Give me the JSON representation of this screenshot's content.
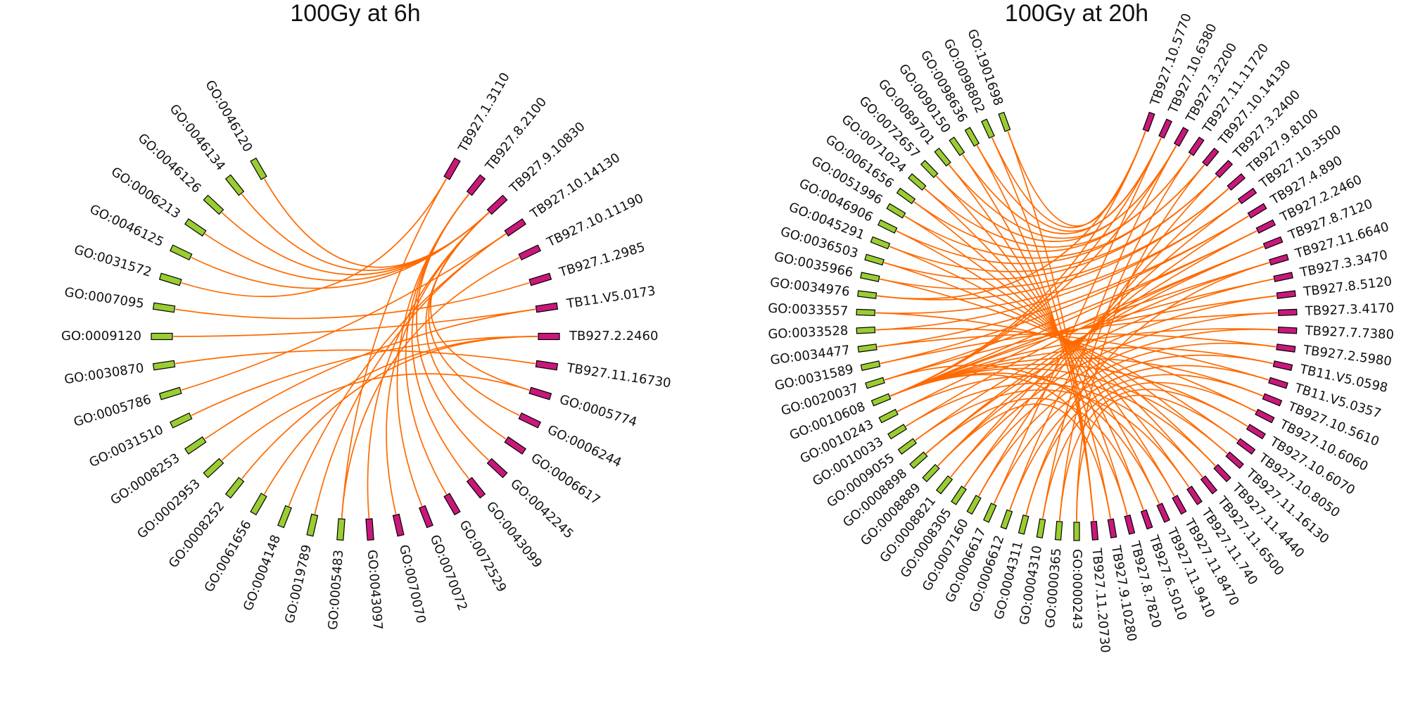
{
  "chart_data": [
    {
      "type": "chord",
      "title": "100Gy at 6h",
      "nodes": [
        {
          "label": "TB927.1.3110",
          "group": "gene"
        },
        {
          "label": "TB927.8.2100",
          "group": "gene"
        },
        {
          "label": "TB927.9.10830",
          "group": "gene"
        },
        {
          "label": "TB927.10.14130",
          "group": "gene"
        },
        {
          "label": "TB927.10.11190",
          "group": "gene"
        },
        {
          "label": "TB927.1.2985",
          "group": "gene"
        },
        {
          "label": "TB11.V5.0173",
          "group": "gene"
        },
        {
          "label": "TB927.2.2460",
          "group": "gene"
        },
        {
          "label": "TB927.11.16730",
          "group": "gene"
        },
        {
          "label": "GO:0005774",
          "group": "gene"
        },
        {
          "label": "GO:0006244",
          "group": "gene"
        },
        {
          "label": "GO:0006617",
          "group": "gene"
        },
        {
          "label": "GO:0042245",
          "group": "gene"
        },
        {
          "label": "GO:0043099",
          "group": "gene"
        },
        {
          "label": "GO:0072529",
          "group": "gene"
        },
        {
          "label": "GO:0070072",
          "group": "gene"
        },
        {
          "label": "GO:0070070",
          "group": "gene"
        },
        {
          "label": "GO:0043097",
          "group": "gene"
        },
        {
          "label": "GO:0005483",
          "group": "go"
        },
        {
          "label": "GO:0019789",
          "group": "go"
        },
        {
          "label": "GO:0004148",
          "group": "go"
        },
        {
          "label": "GO:0061656",
          "group": "go"
        },
        {
          "label": "GO:0008252",
          "group": "go"
        },
        {
          "label": "GO:0002953",
          "group": "go"
        },
        {
          "label": "GO:0008253",
          "group": "go"
        },
        {
          "label": "GO:0031510",
          "group": "go"
        },
        {
          "label": "GO:0005786",
          "group": "go"
        },
        {
          "label": "GO:0030870",
          "group": "go"
        },
        {
          "label": "GO:0009120",
          "group": "go"
        },
        {
          "label": "GO:0007095",
          "group": "go"
        },
        {
          "label": "GO:0031572",
          "group": "go"
        },
        {
          "label": "GO:0046125",
          "group": "go"
        },
        {
          "label": "GO:0006213",
          "group": "go"
        },
        {
          "label": "GO:0046126",
          "group": "go"
        },
        {
          "label": "GO:0046134",
          "group": "go"
        },
        {
          "label": "GO:0046120",
          "group": "go"
        }
      ],
      "links": [
        [
          "TB927.9.10830",
          "GO:0046120"
        ],
        [
          "TB927.9.10830",
          "GO:0046134"
        ],
        [
          "TB927.9.10830",
          "GO:0046126"
        ],
        [
          "TB927.9.10830",
          "GO:0006213"
        ],
        [
          "TB927.9.10830",
          "GO:0046125"
        ],
        [
          "TB927.9.10830",
          "GO:0005774"
        ],
        [
          "TB927.9.10830",
          "GO:0006244"
        ],
        [
          "TB927.9.10830",
          "GO:0006617"
        ],
        [
          "TB927.9.10830",
          "GO:0070070"
        ],
        [
          "TB927.9.10830",
          "GO:0043097"
        ],
        [
          "TB927.8.2100",
          "GO:0072529"
        ],
        [
          "TB927.8.2100",
          "GO:0070072"
        ],
        [
          "TB927.8.2100",
          "GO:0042245"
        ],
        [
          "TB927.8.2100",
          "GO:0043099"
        ],
        [
          "TB927.1.3110",
          "GO:0005483"
        ],
        [
          "TB927.1.3110",
          "GO:0031572"
        ],
        [
          "TB927.10.14130",
          "GO:0019789"
        ],
        [
          "TB927.10.14130",
          "GO:0004148"
        ],
        [
          "TB927.10.11190",
          "GO:0005483"
        ],
        [
          "TB927.1.2985",
          "GO:0007095"
        ],
        [
          "TB11.V5.0173",
          "GO:0009120"
        ],
        [
          "TB11.V5.0173",
          "GO:0008253"
        ],
        [
          "TB927.2.2460",
          "GO:0061656"
        ],
        [
          "TB927.2.2460",
          "GO:0008252"
        ],
        [
          "TB927.2.2460",
          "GO:0031510"
        ],
        [
          "TB927.11.16730",
          "GO:0030870"
        ],
        [
          "GO:0005774",
          "GO:0002953"
        ],
        [
          "TB927.10.14130",
          "GO:0005786"
        ]
      ]
    },
    {
      "type": "chord",
      "title": "100Gy at 20h",
      "nodes": [
        {
          "label": "TB927.10.5770",
          "group": "gene"
        },
        {
          "label": "TB927.10.6380",
          "group": "gene"
        },
        {
          "label": "TB927.3.2200",
          "group": "gene"
        },
        {
          "label": "TB927.11.11720",
          "group": "gene"
        },
        {
          "label": "TB927.10.14130",
          "group": "gene"
        },
        {
          "label": "TB927.3.2400",
          "group": "gene"
        },
        {
          "label": "TB927.9.8100",
          "group": "gene"
        },
        {
          "label": "TB927.10.3500",
          "group": "gene"
        },
        {
          "label": "TB927.4.890",
          "group": "gene"
        },
        {
          "label": "TB927.2.2460",
          "group": "gene"
        },
        {
          "label": "TB927.8.7120",
          "group": "gene"
        },
        {
          "label": "TB927.11.6640",
          "group": "gene"
        },
        {
          "label": "TB927.3.3470",
          "group": "gene"
        },
        {
          "label": "TB927.8.5120",
          "group": "gene"
        },
        {
          "label": "TB927.3.4170",
          "group": "gene"
        },
        {
          "label": "TB927.7.7380",
          "group": "gene"
        },
        {
          "label": "TB927.2.5980",
          "group": "gene"
        },
        {
          "label": "TB11.V5.0598",
          "group": "gene"
        },
        {
          "label": "TB11.V5.0357",
          "group": "gene"
        },
        {
          "label": "TB927.10.5610",
          "group": "gene"
        },
        {
          "label": "TB927.10.6060",
          "group": "gene"
        },
        {
          "label": "TB927.10.6070",
          "group": "gene"
        },
        {
          "label": "TB927.10.8050",
          "group": "gene"
        },
        {
          "label": "TB927.11.16130",
          "group": "gene"
        },
        {
          "label": "TB927.11.4440",
          "group": "gene"
        },
        {
          "label": "TB927.11.6500",
          "group": "gene"
        },
        {
          "label": "TB927.11.740",
          "group": "gene"
        },
        {
          "label": "TB927.11.8470",
          "group": "gene"
        },
        {
          "label": "TB927.11.9410",
          "group": "gene"
        },
        {
          "label": "TB927.6.5010",
          "group": "gene"
        },
        {
          "label": "TB927.8.7820",
          "group": "gene"
        },
        {
          "label": "TB927.9.10280",
          "group": "gene"
        },
        {
          "label": "TB927.11.20730",
          "group": "gene"
        },
        {
          "label": "GO:0000243",
          "group": "go"
        },
        {
          "label": "GO:0000365",
          "group": "go"
        },
        {
          "label": "GO:0004310",
          "group": "go"
        },
        {
          "label": "GO:0004311",
          "group": "go"
        },
        {
          "label": "GO:0006612",
          "group": "go"
        },
        {
          "label": "GO:0006617",
          "group": "go"
        },
        {
          "label": "GO:0007160",
          "group": "go"
        },
        {
          "label": "GO:0008305",
          "group": "go"
        },
        {
          "label": "GO:0008821",
          "group": "go"
        },
        {
          "label": "GO:0008889",
          "group": "go"
        },
        {
          "label": "GO:0008898",
          "group": "go"
        },
        {
          "label": "GO:0009055",
          "group": "go"
        },
        {
          "label": "GO:0010033",
          "group": "go"
        },
        {
          "label": "GO:0010243",
          "group": "go"
        },
        {
          "label": "GO:0010608",
          "group": "go"
        },
        {
          "label": "GO:0020037",
          "group": "go"
        },
        {
          "label": "GO:0031589",
          "group": "go"
        },
        {
          "label": "GO:0034477",
          "group": "go"
        },
        {
          "label": "GO:0033528",
          "group": "go"
        },
        {
          "label": "GO:0033557",
          "group": "go"
        },
        {
          "label": "GO:0034976",
          "group": "go"
        },
        {
          "label": "GO:0035966",
          "group": "go"
        },
        {
          "label": "GO:0036503",
          "group": "go"
        },
        {
          "label": "GO:0045291",
          "group": "go"
        },
        {
          "label": "GO:0046906",
          "group": "go"
        },
        {
          "label": "GO:0051996",
          "group": "go"
        },
        {
          "label": "GO:0061656",
          "group": "go"
        },
        {
          "label": "GO:0071024",
          "group": "go"
        },
        {
          "label": "GO:0072657",
          "group": "go"
        },
        {
          "label": "GO:0089701",
          "group": "go"
        },
        {
          "label": "GO:0090150",
          "group": "go"
        },
        {
          "label": "GO:0098636",
          "group": "go"
        },
        {
          "label": "GO:0098802",
          "group": "go"
        },
        {
          "label": "GO:1901698",
          "group": "go"
        }
      ],
      "links": [
        [
          "TB927.10.5770",
          "GO:1901698"
        ],
        [
          "TB927.10.5770",
          "GO:0098802"
        ],
        [
          "TB927.10.5770",
          "GO:0010608"
        ],
        [
          "TB927.10.5770",
          "GO:0034976"
        ],
        [
          "TB927.10.6380",
          "GO:0098636"
        ],
        [
          "TB927.10.6380",
          "GO:0090150"
        ],
        [
          "TB927.10.6380",
          "GO:0006617"
        ],
        [
          "TB927.10.6380",
          "GO:0010608"
        ],
        [
          "TB927.3.2200",
          "GO:0089701"
        ],
        [
          "TB927.3.2200",
          "GO:0072657"
        ],
        [
          "TB927.3.2200",
          "GO:0004310"
        ],
        [
          "TB927.3.2200",
          "GO:0010608"
        ],
        [
          "TB927.11.11720",
          "GO:0071024"
        ],
        [
          "TB927.11.11720",
          "GO:0061656"
        ],
        [
          "TB927.11.11720",
          "GO:0000365"
        ],
        [
          "TB927.10.14130",
          "GO:0051996"
        ],
        [
          "TB927.10.14130",
          "GO:0046906"
        ],
        [
          "TB927.10.14130",
          "GO:0000243"
        ],
        [
          "TB927.3.2400",
          "GO:0045291"
        ],
        [
          "TB927.3.2400",
          "GO:0036503"
        ],
        [
          "TB927.3.2400",
          "GO:0006612"
        ],
        [
          "TB927.9.8100",
          "GO:0035966"
        ],
        [
          "TB927.9.8100",
          "GO:0034976"
        ],
        [
          "TB927.9.8100",
          "GO:0007160"
        ],
        [
          "TB927.10.3500",
          "GO:0033557"
        ],
        [
          "TB927.10.3500",
          "GO:0033528"
        ],
        [
          "TB927.10.3500",
          "GO:0008305"
        ],
        [
          "TB927.4.890",
          "GO:0034477"
        ],
        [
          "TB927.4.890",
          "GO:0031589"
        ],
        [
          "TB927.4.890",
          "GO:0008821"
        ],
        [
          "TB927.2.2460",
          "GO:0020037"
        ],
        [
          "TB927.2.2460",
          "GO:0010608"
        ],
        [
          "TB927.2.2460",
          "GO:0008889"
        ],
        [
          "TB927.8.7120",
          "GO:0010243"
        ],
        [
          "TB927.8.7120",
          "GO:0010033"
        ],
        [
          "TB927.8.7120",
          "GO:0008898"
        ],
        [
          "TB927.11.6640",
          "GO:0009055"
        ],
        [
          "TB927.11.6640",
          "GO:0010608"
        ],
        [
          "TB927.11.6640",
          "GO:0004311"
        ],
        [
          "TB927.3.3470",
          "GO:0008898"
        ],
        [
          "TB927.3.3470",
          "GO:0010608"
        ],
        [
          "TB927.8.5120",
          "GO:0008889"
        ],
        [
          "TB927.8.5120",
          "GO:0020037"
        ],
        [
          "TB927.3.4170",
          "GO:0008821"
        ],
        [
          "TB927.3.4170",
          "GO:0031589"
        ],
        [
          "TB927.7.7380",
          "GO:0008305"
        ],
        [
          "TB927.7.7380",
          "GO:0010608"
        ],
        [
          "TB927.2.5980",
          "GO:0007160"
        ],
        [
          "TB927.2.5980",
          "GO:0034477"
        ],
        [
          "TB11.V5.0598",
          "GO:0006617"
        ],
        [
          "TB11.V5.0598",
          "GO:0010608"
        ],
        [
          "TB11.V5.0357",
          "GO:0006612"
        ],
        [
          "TB11.V5.0357",
          "GO:0033528"
        ],
        [
          "TB927.10.5610",
          "GO:0004311"
        ],
        [
          "TB927.10.5610",
          "GO:0010608"
        ],
        [
          "TB927.10.6060",
          "GO:0004310"
        ],
        [
          "TB927.10.6060",
          "GO:0033557"
        ],
        [
          "TB927.10.6070",
          "GO:0000365"
        ],
        [
          "TB927.10.6070",
          "GO:0010608"
        ],
        [
          "TB927.10.8050",
          "GO:0000243"
        ],
        [
          "TB927.10.8050",
          "GO:0035966"
        ],
        [
          "TB927.11.16130",
          "GO:0010608"
        ],
        [
          "TB927.11.16130",
          "GO:0036503"
        ],
        [
          "TB927.11.4440",
          "GO:0010243"
        ],
        [
          "TB927.11.4440",
          "GO:0045291"
        ],
        [
          "TB927.11.6500",
          "GO:0010033"
        ],
        [
          "TB927.11.6500",
          "GO:0046906"
        ],
        [
          "TB927.11.740",
          "GO:0009055"
        ],
        [
          "TB927.11.740",
          "GO:0051996"
        ],
        [
          "TB927.11.8470",
          "GO:0010608"
        ],
        [
          "TB927.11.8470",
          "GO:0061656"
        ],
        [
          "TB927.11.9410",
          "GO:0020037"
        ],
        [
          "TB927.11.9410",
          "GO:0071024"
        ],
        [
          "TB927.6.5010",
          "GO:0008898"
        ],
        [
          "TB927.6.5010",
          "GO:0072657"
        ],
        [
          "TB927.8.7820",
          "GO:0010608"
        ],
        [
          "TB927.8.7820",
          "GO:0089701"
        ],
        [
          "TB927.9.10280",
          "GO:0090150"
        ],
        [
          "TB927.9.10280",
          "GO:0008889"
        ],
        [
          "TB927.11.20730",
          "GO:0098636"
        ],
        [
          "TB927.11.20730",
          "GO:0098802"
        ],
        [
          "TB927.11.20730",
          "GO:1901698"
        ]
      ]
    }
  ],
  "colors": {
    "gene_marker": "#c8187a",
    "go_marker": "#9acd32",
    "link": "#ff6a00",
    "marker_edge": "#000000"
  }
}
